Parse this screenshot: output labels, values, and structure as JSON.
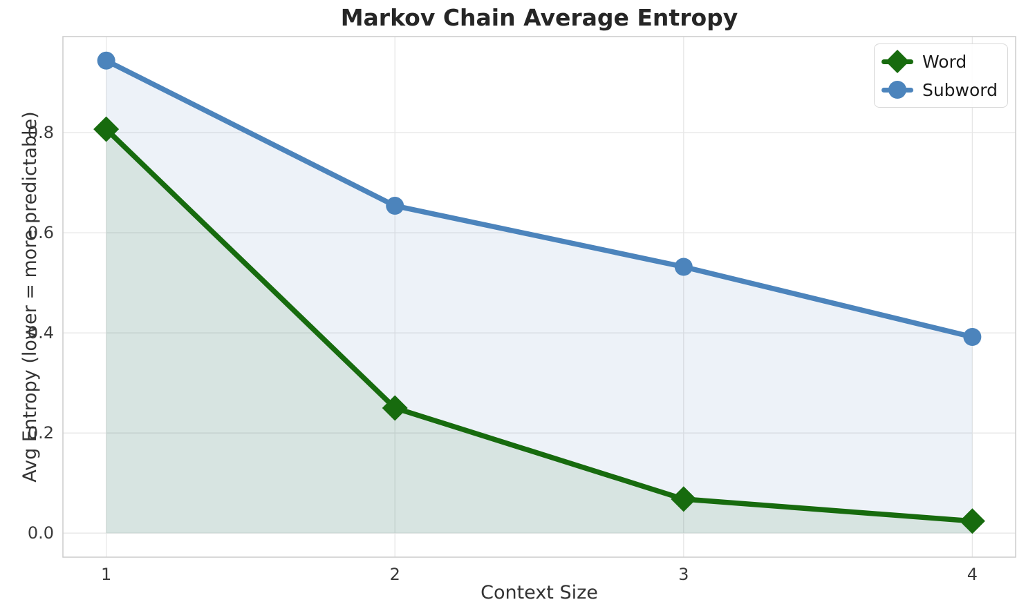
{
  "chart_data": {
    "type": "line",
    "title": "Markov Chain Average Entropy",
    "xlabel": "Context Size",
    "ylabel": "Avg Entropy (lower = more predictable)",
    "x": [
      1,
      2,
      3,
      4
    ],
    "series": [
      {
        "name": "Word",
        "values": [
          0.807,
          0.25,
          0.068,
          0.024
        ],
        "color": "#176b0e",
        "marker": "diamond",
        "fill_to_zero": true
      },
      {
        "name": "Subword",
        "values": [
          0.944,
          0.654,
          0.532,
          0.392
        ],
        "color": "#4c84bc",
        "marker": "circle",
        "fill_to_zero": true
      }
    ],
    "x_ticks": [
      "1",
      "2",
      "3",
      "4"
    ],
    "y_ticks": [
      "0.0",
      "0.2",
      "0.4",
      "0.6",
      "0.8"
    ],
    "xlim": [
      0.85,
      4.15
    ],
    "ylim": [
      -0.048,
      0.992
    ],
    "grid": true,
    "legend_position": "upper right",
    "fill_alpha": 0.1,
    "line_width": 7.5
  },
  "colors": {
    "grid": "#e7e7e7",
    "spine": "#cccccc",
    "title_text": "#262626",
    "tick_text": "#3a3a3a",
    "background": "#ffffff"
  }
}
